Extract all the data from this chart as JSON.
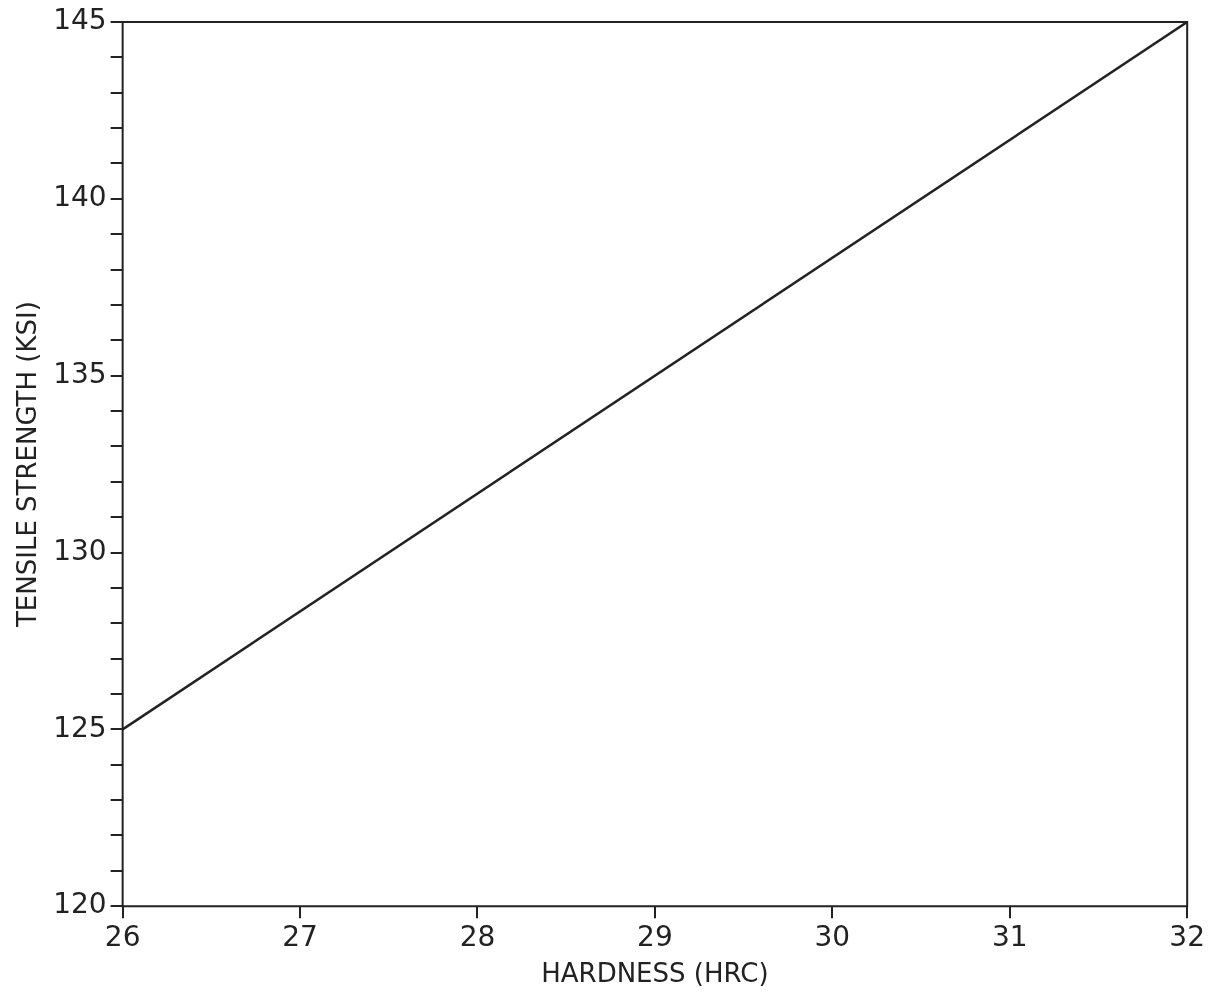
{
  "chart_data": {
    "type": "line",
    "xlabel": "HARDNESS (HRC)",
    "ylabel": "TENSILE STRENGTH (KSI)",
    "series": [
      {
        "color": "#222222",
        "x": [
          26,
          32
        ],
        "values": [
          125,
          145
        ]
      }
    ],
    "xlim": [
      26,
      32
    ],
    "xticks": [
      26,
      27,
      28,
      29,
      30,
      31,
      32
    ],
    "ylim": [
      120,
      145
    ],
    "yticks": [
      120,
      {
        "value": 121,
        "label": null
      },
      {
        "value": 122,
        "label": null
      },
      {
        "value": 123,
        "label": null
      },
      {
        "value": 124,
        "label": null
      },
      125,
      {
        "value": 126,
        "label": null
      },
      {
        "value": 127,
        "label": null
      },
      {
        "value": 128,
        "label": null
      },
      {
        "value": 129,
        "label": null
      },
      130,
      {
        "value": 131,
        "label": null
      },
      {
        "value": 132,
        "label": null
      },
      {
        "value": 133,
        "label": null
      },
      {
        "value": 134,
        "label": null
      },
      135,
      {
        "value": 136,
        "label": null
      },
      {
        "value": 137,
        "label": null
      },
      {
        "value": 138,
        "label": null
      },
      {
        "value": 139,
        "label": null
      },
      140,
      {
        "value": 141,
        "label": null
      },
      {
        "value": 142,
        "label": null
      },
      {
        "value": 143,
        "label": null
      },
      {
        "value": 144,
        "label": null
      },
      145
    ],
    "grid": false,
    "legend": false,
    "marker": "none",
    "line_style": "solid"
  }
}
